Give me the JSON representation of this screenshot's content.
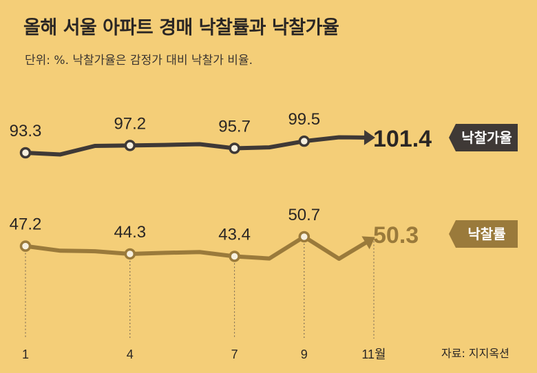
{
  "header": {
    "title": "올해 서울 아파트 경매 낙찰률과 낙찰가율",
    "subtitle": "단위: %. 낙찰가율은 감정가 대비 낙찰가 비율.",
    "source": "자료: 지지옥션"
  },
  "colors": {
    "background": "#f4ce78",
    "price_ratio_line": "#3f3936",
    "sale_rate_line": "#9a7a3b"
  },
  "chart_data": {
    "type": "line",
    "title": "올해 서울 아파트 경매 낙찰률과 낙찰가율",
    "subtitle": "단위: %. 낙찰가율은 감정가 대비 낙찰가 비율.",
    "x": [
      1,
      2,
      3,
      4,
      5,
      6,
      7,
      8,
      9,
      10,
      11
    ],
    "x_ticks": [
      1,
      4,
      7,
      9,
      11
    ],
    "x_tick_labels": [
      "1",
      "4",
      "7",
      "9",
      "11월"
    ],
    "xlabel": "월",
    "ylabel": "%",
    "grid": false,
    "series": [
      {
        "name": "낙찰가율",
        "values": [
          93.3,
          92.4,
          97.0,
          97.2,
          97.5,
          97.9,
          95.7,
          96.2,
          99.5,
          101.6,
          101.4
        ],
        "labeled_months": [
          1,
          4,
          7,
          9
        ],
        "labels": [
          "93.3",
          "97.2",
          "95.7",
          "99.5"
        ],
        "last_label": "101.4",
        "badge": "낙찰가율"
      },
      {
        "name": "낙찰률",
        "values": [
          47.2,
          45.5,
          45.3,
          44.3,
          44.7,
          45.0,
          43.4,
          42.6,
          50.7,
          42.5,
          50.3
        ],
        "labeled_months": [
          1,
          4,
          7,
          9
        ],
        "labels": [
          "47.2",
          "44.3",
          "43.4",
          "50.7"
        ],
        "last_label": "50.3",
        "badge": "낙찰률"
      }
    ]
  }
}
